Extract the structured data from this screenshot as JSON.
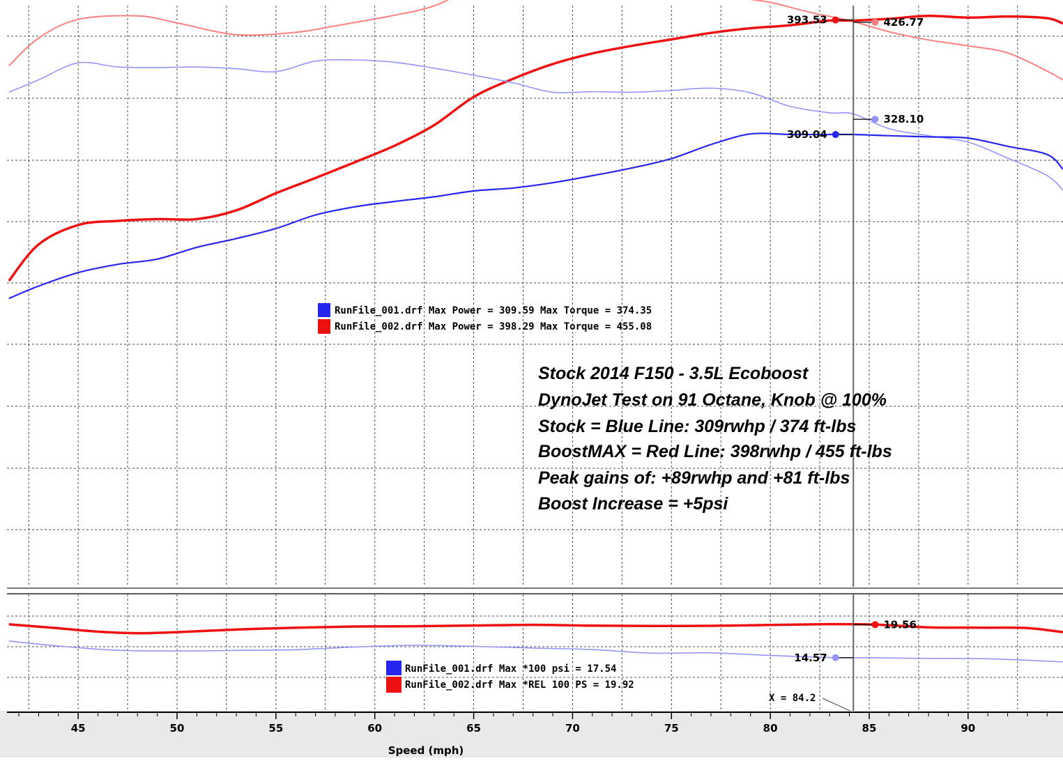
{
  "chart_data": [
    {
      "type": "line",
      "panel": "power-torque",
      "xlabel": "Speed (mph)",
      "xlim": [
        41.4,
        94.8
      ],
      "ylim": [
        0,
        100
      ],
      "grid": true,
      "cursor_x": 84.2,
      "series": [
        {
          "id": "red-torque",
          "color": "#fb8080",
          "x": [
            41.5,
            43,
            45,
            48,
            50,
            53,
            56,
            58,
            61,
            63,
            65,
            68,
            70,
            72,
            74,
            76,
            78,
            80,
            82,
            84,
            86,
            88,
            90,
            92,
            94,
            94.8
          ],
          "values": [
            88.8,
            93.5,
            96.7,
            97.3,
            96.1,
            94.1,
            94.5,
            95.6,
            97.4,
            99.0,
            101.9,
            103.6,
            104.5,
            104.7,
            104.2,
            102.3,
            100.6,
            99.6,
            97.9,
            96.5,
            94.6,
            93.2,
            92.2,
            91.0,
            87.9,
            86.4
          ]
        },
        {
          "id": "red-power",
          "color": "#ee1111",
          "x": [
            41.5,
            43,
            45,
            47,
            49,
            51,
            53,
            55,
            57,
            59,
            61,
            63,
            65,
            67,
            69,
            71,
            73,
            75,
            77,
            79,
            81,
            83,
            84.2,
            86,
            88,
            90,
            92,
            94,
            94.8
          ],
          "values": [
            52.2,
            58.4,
            61.7,
            62.4,
            62.7,
            62.7,
            64.2,
            67.1,
            69.7,
            72.4,
            75.2,
            78.7,
            83.5,
            86.6,
            89.1,
            90.9,
            92.2,
            93.3,
            94.4,
            95.2,
            95.7,
            96.5,
            96.5,
            96.8,
            97.3,
            97.0,
            97.2,
            96.9,
            96.0
          ]
        },
        {
          "id": "blue-torque",
          "color": "#9494fa",
          "x": [
            41.5,
            43,
            45,
            47,
            49,
            51,
            53,
            55,
            57,
            59,
            61,
            63,
            65,
            67,
            69,
            71,
            73,
            75,
            77,
            79,
            81,
            83,
            84.2,
            86,
            88,
            90,
            92,
            94,
            94.8
          ],
          "values": [
            84.3,
            86.4,
            89.3,
            88.6,
            88.5,
            88.6,
            88.3,
            87.8,
            89.6,
            89.8,
            89.4,
            88.4,
            87.2,
            85.9,
            84.3,
            84.4,
            84.3,
            84.6,
            85.0,
            84.2,
            81.9,
            80.8,
            80.6,
            78.1,
            76.9,
            75.8,
            73.1,
            70.1,
            67.6
          ]
        },
        {
          "id": "blue-power",
          "color": "#2626ee",
          "x": [
            41.5,
            43,
            45,
            47,
            49,
            51,
            53,
            55,
            57,
            59,
            61,
            63,
            65,
            67,
            69,
            71,
            73,
            75,
            77,
            79,
            81,
            83,
            84.2,
            86,
            88,
            90,
            92,
            94,
            94.8
          ],
          "values": [
            49.2,
            51.3,
            53.6,
            55.0,
            55.9,
            57.9,
            59.4,
            61.1,
            63.4,
            64.8,
            65.7,
            66.5,
            67.5,
            68.0,
            68.9,
            70.1,
            71.4,
            73.0,
            75.4,
            77.2,
            77.1,
            77.1,
            77.1,
            76.9,
            76.7,
            76.5,
            75.1,
            73.7,
            71.2
          ]
        }
      ],
      "markers": [
        {
          "series": "red-torque",
          "x": 85.3,
          "y": 96.2,
          "label": "426.77",
          "label_side": "right"
        },
        {
          "series": "red-power",
          "x": 83.3,
          "y": 96.6,
          "label": "393.53",
          "label_side": "left"
        },
        {
          "series": "blue-torque",
          "x": 85.3,
          "y": 79.7,
          "label": "328.10",
          "label_side": "right"
        },
        {
          "series": "blue-power",
          "x": 83.3,
          "y": 77.1,
          "label": "309.04",
          "label_side": "left"
        }
      ],
      "legend": [
        {
          "file": "RunFile_001.drf",
          "text": "RunFile_001.drf Max Power = 309.59 Max Torque = 374.35",
          "color": "#2626ee"
        },
        {
          "file": "RunFile_002.drf",
          "text": "RunFile_002.drf Max Power = 398.29 Max Torque = 455.08",
          "color": "#ee1111"
        }
      ],
      "annotations": [
        "Stock 2014 F150 - 3.5L Ecoboost",
        "DynoJet Test on 91 Octane, Knob @ 100%",
        "Stock = Blue Line: 309rwhp / 374 ft-lbs",
        "BoostMAX = Red Line: 398rwhp / 455 ft-lbs",
        "Peak gains of: +89rwhp and +81 ft-lbs",
        "Boost Increase = +5psi"
      ]
    },
    {
      "type": "line",
      "panel": "boost",
      "xlabel": "Speed (mph)",
      "xlim": [
        41.4,
        94.8
      ],
      "ylim": [
        0,
        100
      ],
      "grid": true,
      "series": [
        {
          "id": "red-boost",
          "color": "#ee1111",
          "x": [
            41.5,
            44,
            46,
            48,
            50,
            53,
            56,
            59,
            62,
            65,
            68,
            71,
            74,
            77,
            80,
            83,
            85.3,
            88,
            91,
            93,
            94.8
          ],
          "values": [
            74.0,
            70.7,
            67.8,
            66.5,
            67.4,
            69.6,
            71.2,
            72.2,
            72.4,
            73.0,
            73.6,
            72.9,
            72.6,
            72.8,
            73.5,
            74.2,
            73.8,
            71.5,
            71.2,
            70.9,
            67.4
          ]
        },
        {
          "id": "blue-boost",
          "color": "#9494fa",
          "x": [
            41.5,
            44,
            47,
            50,
            53,
            56,
            59,
            62,
            65,
            68,
            71,
            74,
            77,
            80,
            83.3,
            85,
            88,
            91,
            94.8
          ],
          "values": [
            59.9,
            55.6,
            52.0,
            51.4,
            51.9,
            52.5,
            54.8,
            56.2,
            55.3,
            53.9,
            52.6,
            49.6,
            49.8,
            47.6,
            45.7,
            45.7,
            45.1,
            44.8,
            42.2
          ]
        }
      ],
      "markers": [
        {
          "series": "red-boost",
          "x": 85.3,
          "y": 73.8,
          "label": "19.56",
          "label_side": "right"
        },
        {
          "series": "blue-boost",
          "x": 83.3,
          "y": 45.7,
          "label": "14.57",
          "label_side": "left"
        }
      ],
      "legend": [
        {
          "file": "RunFile_001.drf",
          "text": "RunFile_001.drf Max *100 psi = 17.54",
          "color": "#2626ee"
        },
        {
          "file": "RunFile_002.drf",
          "text": "RunFile_002.drf Max *REL 100 PS = 19.92",
          "color": "#ee1111"
        }
      ],
      "cursor_readout": "X = 84.2"
    }
  ],
  "x_ticks": [
    "45",
    "50",
    "55",
    "60",
    "65",
    "70",
    "75",
    "80",
    "85",
    "90"
  ],
  "x_tick_values": [
    45,
    50,
    55,
    60,
    65,
    70,
    75,
    80,
    85,
    90
  ]
}
